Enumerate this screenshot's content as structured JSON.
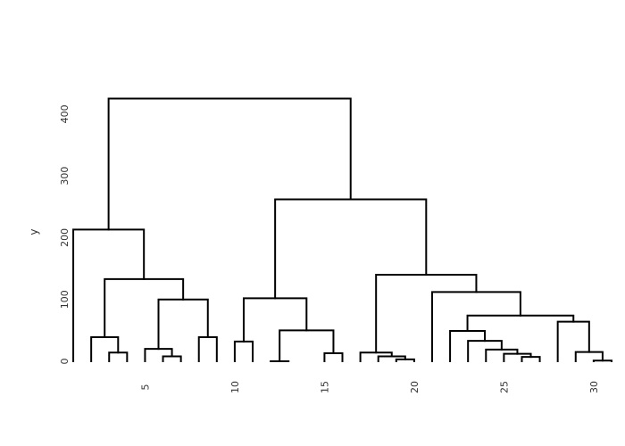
{
  "chart_data": {
    "type": "dendrogram",
    "title": "",
    "xlabel": "",
    "ylabel": "y",
    "ylim": [
      0,
      420
    ],
    "xlim": [
      0.5,
      31.5
    ],
    "grid": false,
    "legend": "none",
    "line_color": "#000000",
    "yticks": [
      {
        "value": 0,
        "label": "0"
      },
      {
        "value": 100,
        "label": "100"
      },
      {
        "value": 200,
        "label": "200"
      },
      {
        "value": 300,
        "label": "300"
      },
      {
        "value": 400,
        "label": "400"
      }
    ],
    "xticks": [
      {
        "value": 5,
        "label": "5"
      },
      {
        "value": 10,
        "label": "10"
      },
      {
        "value": 15,
        "label": "15"
      },
      {
        "value": 20,
        "label": "20"
      },
      {
        "value": 25,
        "label": "25"
      },
      {
        "value": 30,
        "label": "30"
      }
    ],
    "merges": [
      {
        "x1": 3,
        "y1": 0,
        "x2": 4,
        "y2": 0,
        "height": 14
      },
      {
        "x1": 2,
        "y1": 0,
        "x2": 3.5,
        "y2": 14,
        "height": 39
      },
      {
        "x1": 6,
        "y1": 0,
        "x2": 7,
        "y2": 0,
        "height": 8
      },
      {
        "x1": 5,
        "y1": 0,
        "x2": 6.5,
        "y2": 8,
        "height": 20
      },
      {
        "x1": 8,
        "y1": 0,
        "x2": 9,
        "y2": 0,
        "height": 39
      },
      {
        "x1": 5.75,
        "y1": 20,
        "x2": 8.5,
        "y2": 39,
        "height": 100
      },
      {
        "x1": 2.75,
        "y1": 39,
        "x2": 7.125,
        "y2": 100,
        "height": 133
      },
      {
        "x1": 1,
        "y1": 0,
        "x2": 4.9375,
        "y2": 133,
        "height": 213
      },
      {
        "x1": 10,
        "y1": 0,
        "x2": 11,
        "y2": 0,
        "height": 32
      },
      {
        "x1": 12,
        "y1": 0,
        "x2": 13,
        "y2": 0,
        "height": 0
      },
      {
        "x1": 15,
        "y1": 0,
        "x2": 16,
        "y2": 0,
        "height": 13
      },
      {
        "x1": 12.5,
        "y1": 0,
        "x2": 15.5,
        "y2": 13,
        "height": 50
      },
      {
        "x1": 10.5,
        "y1": 32,
        "x2": 14,
        "y2": 50,
        "height": 102
      },
      {
        "x1": 19,
        "y1": 0,
        "x2": 20,
        "y2": 0,
        "height": 3
      },
      {
        "x1": 18,
        "y1": 0,
        "x2": 19.5,
        "y2": 3,
        "height": 8
      },
      {
        "x1": 17,
        "y1": 0,
        "x2": 18.75,
        "y2": 8,
        "height": 14
      },
      {
        "x1": 26,
        "y1": 0,
        "x2": 27,
        "y2": 0,
        "height": 7
      },
      {
        "x1": 25,
        "y1": 0,
        "x2": 26.5,
        "y2": 7,
        "height": 12
      },
      {
        "x1": 24,
        "y1": 0,
        "x2": 25.75,
        "y2": 12,
        "height": 19
      },
      {
        "x1": 23,
        "y1": 0,
        "x2": 24.875,
        "y2": 19,
        "height": 33
      },
      {
        "x1": 22,
        "y1": 0,
        "x2": 23.9375,
        "y2": 33,
        "height": 49
      },
      {
        "x1": 30,
        "y1": 0,
        "x2": 31,
        "y2": 0,
        "height": 1
      },
      {
        "x1": 29,
        "y1": 0,
        "x2": 30.5,
        "y2": 1,
        "height": 15
      },
      {
        "x1": 28,
        "y1": 0,
        "x2": 29.75,
        "y2": 15,
        "height": 64
      },
      {
        "x1": 22.96875,
        "y1": 49,
        "x2": 28.875,
        "y2": 64,
        "height": 74
      },
      {
        "x1": 21,
        "y1": 0,
        "x2": 25.921875,
        "y2": 74,
        "height": 112
      },
      {
        "x1": 17.875,
        "y1": 14,
        "x2": 23.4609375,
        "y2": 112,
        "height": 140
      },
      {
        "x1": 12.25,
        "y1": 102,
        "x2": 20.66796875,
        "y2": 140,
        "height": 262
      },
      {
        "x1": 2.96875,
        "y1": 213,
        "x2": 16.458984375,
        "y2": 262,
        "height": 425
      }
    ]
  }
}
